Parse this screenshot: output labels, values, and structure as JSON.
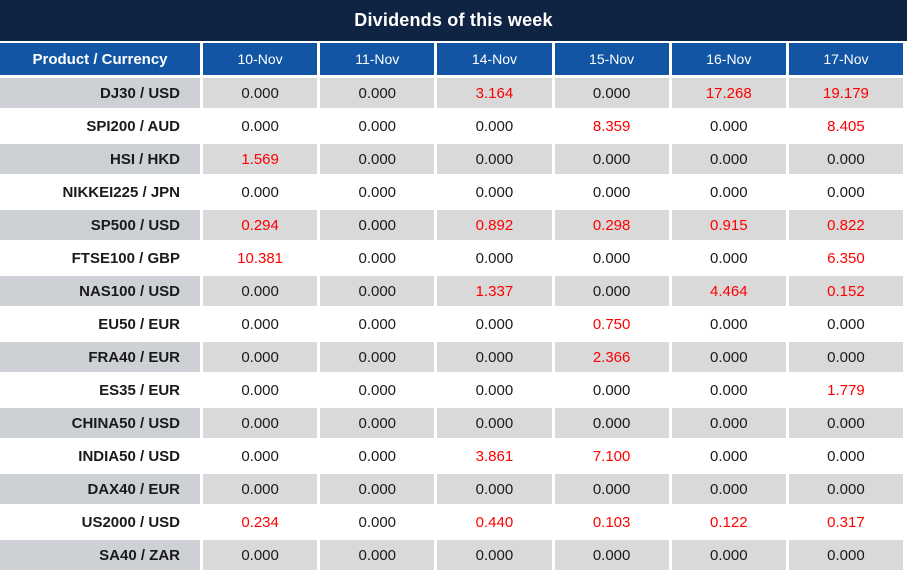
{
  "title": "Dividends of this week",
  "table": {
    "product_column_header": "Product / Currency",
    "date_columns": [
      "10-Nov",
      "11-Nov",
      "14-Nov",
      "15-Nov",
      "16-Nov",
      "17-Nov"
    ],
    "zero_value": "0.000",
    "highlight_rule": "non-zero dividend values are shown in red",
    "rows": [
      {
        "product": "DJ30 / USD",
        "values": [
          "0.000",
          "0.000",
          "3.164",
          "0.000",
          "17.268",
          "19.179"
        ]
      },
      {
        "product": "SPI200 / AUD",
        "values": [
          "0.000",
          "0.000",
          "0.000",
          "8.359",
          "0.000",
          "8.405"
        ]
      },
      {
        "product": "HSI / HKD",
        "values": [
          "1.569",
          "0.000",
          "0.000",
          "0.000",
          "0.000",
          "0.000"
        ]
      },
      {
        "product": "NIKKEI225 / JPN",
        "values": [
          "0.000",
          "0.000",
          "0.000",
          "0.000",
          "0.000",
          "0.000"
        ]
      },
      {
        "product": "SP500 / USD",
        "values": [
          "0.294",
          "0.000",
          "0.892",
          "0.298",
          "0.915",
          "0.822"
        ]
      },
      {
        "product": "FTSE100 / GBP",
        "values": [
          "10.381",
          "0.000",
          "0.000",
          "0.000",
          "0.000",
          "6.350"
        ]
      },
      {
        "product": "NAS100 / USD",
        "values": [
          "0.000",
          "0.000",
          "1.337",
          "0.000",
          "4.464",
          "0.152"
        ]
      },
      {
        "product": "EU50 / EUR",
        "values": [
          "0.000",
          "0.000",
          "0.000",
          "0.750",
          "0.000",
          "0.000"
        ]
      },
      {
        "product": "FRA40 / EUR",
        "values": [
          "0.000",
          "0.000",
          "0.000",
          "2.366",
          "0.000",
          "0.000"
        ]
      },
      {
        "product": "ES35 / EUR",
        "values": [
          "0.000",
          "0.000",
          "0.000",
          "0.000",
          "0.000",
          "1.779"
        ]
      },
      {
        "product": "CHINA50 / USD",
        "values": [
          "0.000",
          "0.000",
          "0.000",
          "0.000",
          "0.000",
          "0.000"
        ]
      },
      {
        "product": "INDIA50 / USD",
        "values": [
          "0.000",
          "0.000",
          "3.861",
          "7.100",
          "0.000",
          "0.000"
        ]
      },
      {
        "product": "DAX40 / EUR",
        "values": [
          "0.000",
          "0.000",
          "0.000",
          "0.000",
          "0.000",
          "0.000"
        ]
      },
      {
        "product": "US2000 / USD",
        "values": [
          "0.234",
          "0.000",
          "0.440",
          "0.103",
          "0.122",
          "0.317"
        ]
      },
      {
        "product": "SA40 / ZAR",
        "values": [
          "0.000",
          "0.000",
          "0.000",
          "0.000",
          "0.000",
          "0.000"
        ]
      }
    ]
  },
  "colors": {
    "title_bar_bg": "#0F2442",
    "column_header_bg": "#1155A4",
    "gray_row_product_bg": "#CDD0D5",
    "gray_row_value_bg": "#D9D9D9",
    "white_row_bg": "#FFFFFF",
    "header_text": "#FFFFFF",
    "value_text": "#1A1A1A",
    "nonzero_value_text": "#FF0000"
  }
}
